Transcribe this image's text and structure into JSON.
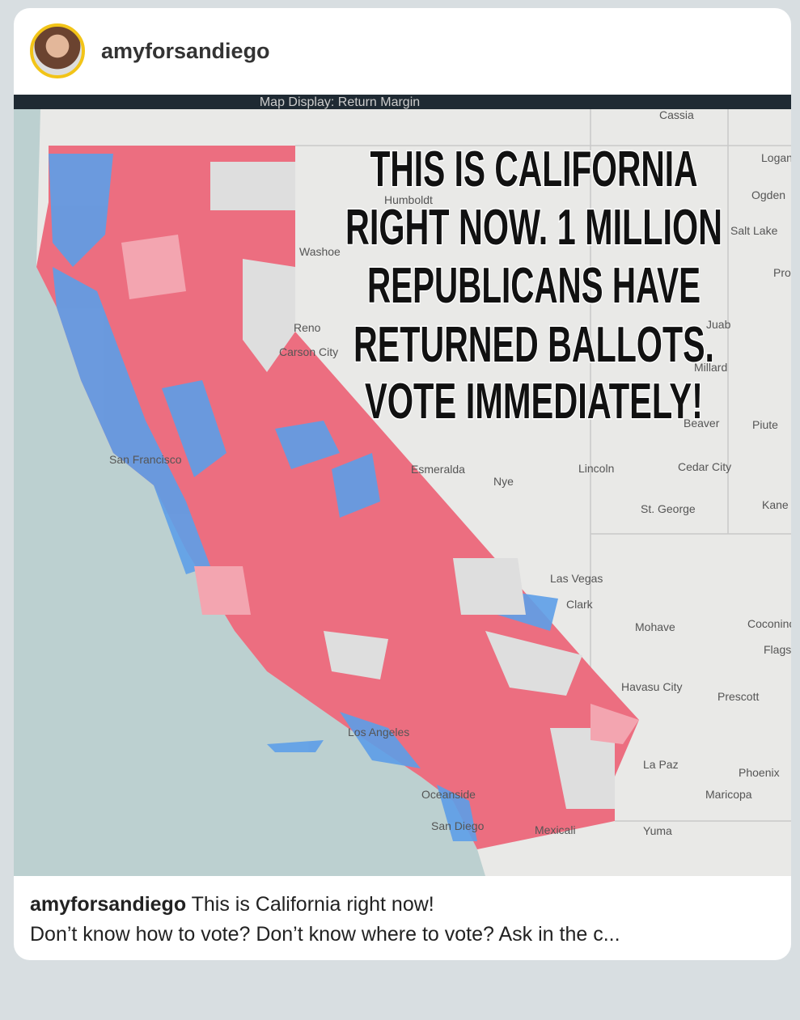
{
  "header": {
    "username": "amyforsandiego"
  },
  "map": {
    "display_label": "Map Display: Return Margin",
    "overlay_lines": [
      "THIS IS CALIFORNIA",
      "RIGHT NOW. 1 MILLION",
      "REPUBLICANS HAVE",
      "RETURNED BALLOTS.",
      "VOTE IMMEDIATELY!"
    ],
    "place_labels": [
      "Reno",
      "Washoe",
      "Carson City",
      "Esmeralda",
      "Nye",
      "Lincoln",
      "Cedar City",
      "St. George",
      "Las Vegas",
      "Clark",
      "Mohave",
      "Havasu City",
      "Prescott",
      "Phoenix",
      "Maricopa",
      "La Paz",
      "Yuma",
      "Coconino",
      "Flags",
      "Salt Lake",
      "Ogden",
      "Logan",
      "Pro",
      "Juab",
      "Millard",
      "Beaver",
      "Piute",
      "Kane",
      "San Francisco",
      "San Diego",
      "Mexicali",
      "Los Angeles",
      "Oceanside",
      "Cassia",
      "Humboldt"
    ]
  },
  "caption": {
    "username": "amyforsandiego",
    "text": "This is California right now!",
    "more": "Don’t know how to vote? Don’t know where to vote? Ask in the c..."
  }
}
